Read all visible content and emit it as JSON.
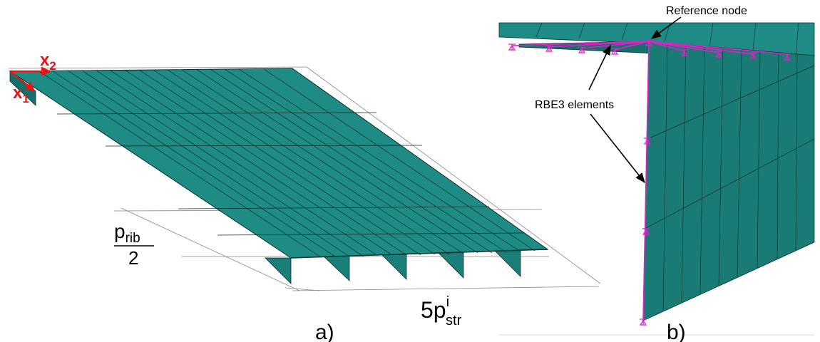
{
  "panel_a": {
    "axis_x1": "x",
    "axis_x1_sub": "1",
    "axis_x2": "x",
    "axis_x2_sub": "2",
    "rib_numerator": "p",
    "rib_numerator_sub": "rib",
    "rib_denominator": "2",
    "str_coef": "5p",
    "str_sup": "i",
    "str_sub": "str",
    "caption": "a)"
  },
  "panel_b": {
    "reference_node_label": "Reference node",
    "rbe3_label": "RBE3 elements",
    "caption": "b)"
  },
  "colors": {
    "shell_top": "#1e8b85",
    "shell_side": "#15706b",
    "mesh_line": "#0a2f2d",
    "axis_red": "#ee1111",
    "rbe3_magenta": "#e020c8"
  }
}
